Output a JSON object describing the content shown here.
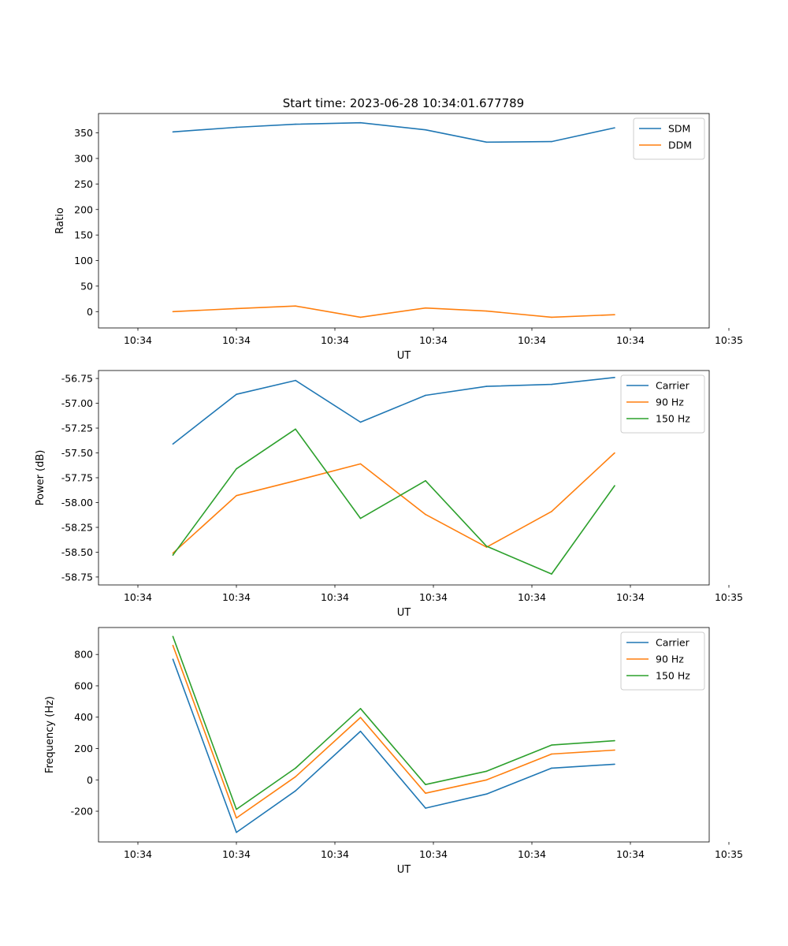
{
  "figure_title": "Start time: 2023-06-28 10:34:01.677789",
  "colors": {
    "blue": "#1f77b4",
    "orange": "#ff7f0e",
    "green": "#2ca02c"
  },
  "chart_data": [
    {
      "type": "line",
      "title": "Start time: 2023-06-28 10:34:01.677789",
      "xlabel": "UT",
      "ylabel": "Ratio",
      "x": [
        "10:34:01.677789",
        "10:34:02.0",
        "10:34:02.3",
        "10:34:02.63",
        "10:34:02.96",
        "10:34:03.27",
        "10:34:03.6",
        "10:34:03.92"
      ],
      "x_ticks": [
        "10:34",
        "10:34",
        "10:34",
        "10:34",
        "10:34",
        "10:34",
        "10:35"
      ],
      "ylim": [
        -32,
        388
      ],
      "y_ticks": [
        0,
        50,
        100,
        150,
        200,
        250,
        300,
        350
      ],
      "legend": "upper right",
      "series": [
        {
          "name": "SDM",
          "color": "#1f77b4",
          "values": [
            352,
            361,
            367,
            370,
            356,
            332,
            333,
            360
          ]
        },
        {
          "name": "DDM",
          "color": "#ff7f0e",
          "values": [
            0,
            6,
            11,
            -11,
            7,
            1,
            -11,
            -6
          ]
        }
      ]
    },
    {
      "type": "line",
      "title": "",
      "xlabel": "UT",
      "ylabel": "Power (dB)",
      "x": [
        "10:34:01.677789",
        "10:34:02.0",
        "10:34:02.3",
        "10:34:02.63",
        "10:34:02.96",
        "10:34:03.27",
        "10:34:03.6",
        "10:34:03.92"
      ],
      "x_ticks": [
        "10:34",
        "10:34",
        "10:34",
        "10:34",
        "10:34",
        "10:34",
        "10:35"
      ],
      "ylim": [
        -58.83,
        -56.67
      ],
      "y_ticks": [
        "-56.75",
        "-57.00",
        "-57.25",
        "-57.50",
        "-57.75",
        "-58.00",
        "-58.25",
        "-58.50",
        "-58.75"
      ],
      "legend": "upper right",
      "series": [
        {
          "name": "Carrier",
          "color": "#1f77b4",
          "values": [
            -57.41,
            -56.91,
            -56.77,
            -57.19,
            -56.92,
            -56.83,
            -56.81,
            -56.74
          ]
        },
        {
          "name": "90 Hz",
          "color": "#ff7f0e",
          "values": [
            -58.51,
            -57.93,
            -57.78,
            -57.61,
            -58.12,
            -58.45,
            -58.09,
            -57.5
          ]
        },
        {
          "name": "150 Hz",
          "color": "#2ca02c",
          "values": [
            -58.53,
            -57.66,
            -57.26,
            -58.16,
            -57.78,
            -58.44,
            -58.72,
            -57.83
          ]
        }
      ]
    },
    {
      "type": "line",
      "title": "",
      "xlabel": "UT",
      "ylabel": "Frequency (Hz)",
      "x": [
        "10:34:01.677789",
        "10:34:02.0",
        "10:34:02.3",
        "10:34:02.63",
        "10:34:02.96",
        "10:34:03.27",
        "10:34:03.6",
        "10:34:03.92"
      ],
      "x_ticks": [
        "10:34",
        "10:34",
        "10:34",
        "10:34",
        "10:34",
        "10:34",
        "10:35"
      ],
      "ylim": [
        -396,
        972
      ],
      "y_ticks": [
        -200,
        0,
        200,
        400,
        600,
        800
      ],
      "legend": "upper right",
      "series": [
        {
          "name": "Carrier",
          "color": "#1f77b4",
          "values": [
            770,
            -335,
            -70,
            310,
            -180,
            -90,
            75,
            100
          ]
        },
        {
          "name": "90 Hz",
          "color": "#ff7f0e",
          "values": [
            858,
            -243,
            20,
            398,
            -85,
            0,
            165,
            190
          ]
        },
        {
          "name": "150 Hz",
          "color": "#2ca02c",
          "values": [
            915,
            -188,
            75,
            455,
            -30,
            55,
            222,
            250
          ]
        }
      ]
    }
  ]
}
